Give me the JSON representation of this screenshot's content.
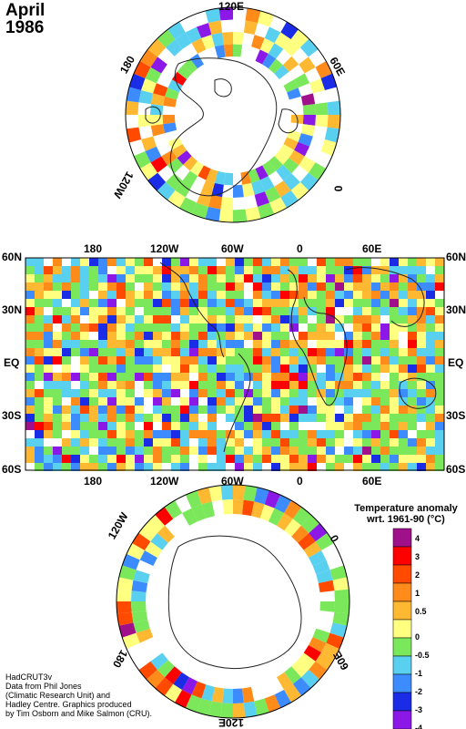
{
  "title": {
    "month": "April",
    "year": "1986"
  },
  "north_polar": {
    "labels": [
      "120E",
      "60E",
      "0",
      "120W",
      "180"
    ]
  },
  "world": {
    "top_lon": [
      "180",
      "120W",
      "60W",
      "0",
      "60E"
    ],
    "bottom_lon": [
      "180",
      "120W",
      "60W",
      "0",
      "60E"
    ],
    "lat_left": [
      "60N",
      "30N",
      "EQ",
      "30S",
      "60S"
    ],
    "lat_right": [
      "60N",
      "30N",
      "EQ",
      "30S",
      "60S"
    ]
  },
  "south_polar": {
    "labels": [
      "120W",
      "0",
      "180",
      "60E",
      "120E"
    ]
  },
  "legend": {
    "title_line1": "Temperature anomaly",
    "title_line2": "wrt. 1961-90  (°C)",
    "labels": [
      "4",
      "3",
      "2",
      "1",
      "0.5",
      "0",
      "-0.5",
      "-1",
      "-2",
      "-3",
      "-4"
    ],
    "colors": [
      "#a0108a",
      "#ff0000",
      "#ff4a00",
      "#ff8c1a",
      "#ffb832",
      "#ffff80",
      "#7ae85a",
      "#5ad0f0",
      "#3c8cff",
      "#1a2ce6",
      "#8c18e8"
    ]
  },
  "credits": [
    "HadCRUT3v",
    "Data from Phil Jones",
    "(Climatic Research Unit) and",
    "Hadley Centre.  Graphics produced",
    "by Tim Osborn and Mike Salmon (CRU)."
  ]
}
